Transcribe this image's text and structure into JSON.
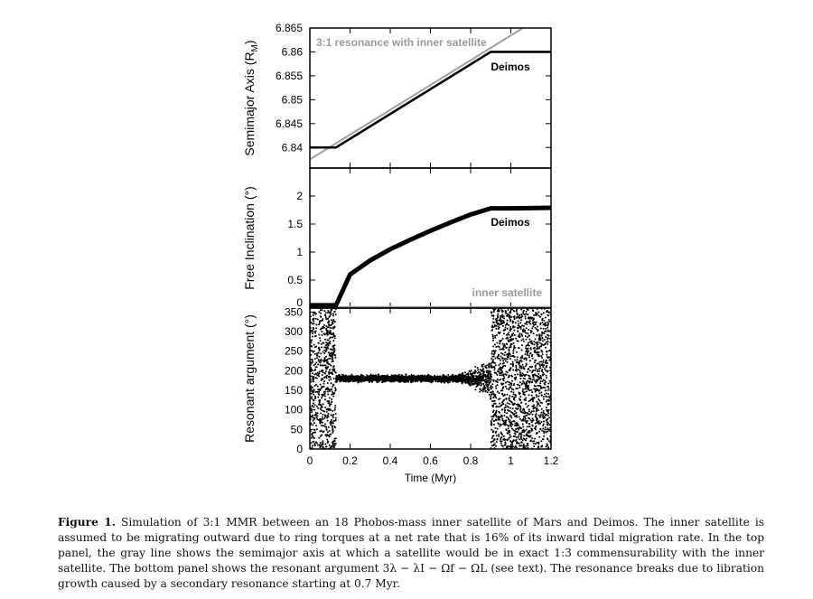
{
  "caption": {
    "label": "Figure 1.",
    "text": "Simulation of 3:1 MMR between an 18 Phobos-mass inner satellite of Mars and Deimos. The inner satellite is assumed to be migrating outward due to ring torques at a net rate that is 16% of its inward tidal migration rate. In the top panel, the gray line shows the semimajor axis at which a satellite would be in exact 1:3 commensurability with the inner satellite. The bottom panel shows the resonant argument 3λ − λI − Ωf − ΩL (see text). The resonance breaks due to libration growth caused by a secondary resonance starting at 0.7 Myr."
  },
  "chart_data": [
    {
      "type": "line",
      "ylabel": "Semimajor Axis (R_M)",
      "ylabel_main": "Semimajor Axis (R",
      "ylabel_sub": "M",
      "ylabel_end": ")",
      "xlim": [
        0,
        1.2
      ],
      "ylim": [
        6.8357,
        6.865
      ],
      "yticks": [
        "6.84",
        "6.845",
        "6.85",
        "6.855",
        "6.86",
        "6.865"
      ],
      "yticks_values": [
        6.84,
        6.845,
        6.85,
        6.855,
        6.86,
        6.865
      ],
      "series": [
        {
          "name": "Deimos",
          "color": "#000000",
          "x": [
            0,
            0.13,
            0.9,
            1.2
          ],
          "y": [
            6.84,
            6.84,
            6.86,
            6.86
          ]
        },
        {
          "name": "3:1 resonance with inner satellite",
          "color": "#a0a0a0",
          "x": [
            0,
            1.06
          ],
          "y": [
            6.8375,
            6.865
          ]
        }
      ]
    },
    {
      "type": "line",
      "ylabel": "Free Inclination (°)",
      "xlim": [
        0,
        1.2
      ],
      "ylim": [
        0,
        2.5
      ],
      "yticks": [
        "0",
        "0.5",
        "1",
        "1.5",
        "2"
      ],
      "yticks_values": [
        0,
        0.5,
        1,
        1.5,
        2
      ],
      "series": [
        {
          "name": "Deimos",
          "color": "#000000",
          "x": [
            0,
            0.13,
            0.2,
            0.3,
            0.4,
            0.5,
            0.6,
            0.7,
            0.8,
            0.9,
            1.0,
            1.2
          ],
          "y": [
            0.05,
            0.05,
            0.6,
            0.85,
            1.05,
            1.22,
            1.38,
            1.53,
            1.67,
            1.78,
            1.78,
            1.79
          ]
        },
        {
          "name": "inner satellite",
          "color": "#a0a0a0",
          "x": [
            0,
            1.2
          ],
          "y": [
            0.02,
            0.02
          ]
        }
      ]
    },
    {
      "type": "scatter",
      "ylabel": "Resonant argument (°)",
      "xlabel": "Time (Myr)",
      "xlim": [
        0,
        1.2
      ],
      "ylim": [
        0,
        360
      ],
      "xticks": [
        "0",
        "0.2",
        "0.4",
        "0.6",
        "0.8",
        "1",
        "1.2"
      ],
      "xticks_values": [
        0,
        0.2,
        0.4,
        0.6,
        0.8,
        1,
        1.2
      ],
      "yticks": [
        "0",
        "50",
        "100",
        "150",
        "200",
        "250",
        "300",
        "350"
      ],
      "yticks_values": [
        0,
        50,
        100,
        150,
        200,
        250,
        300,
        350
      ],
      "regimes": [
        {
          "x_range": [
            0,
            0.13
          ],
          "behavior": "circulating",
          "y_range": [
            0,
            360
          ]
        },
        {
          "x_range": [
            0.13,
            0.7
          ],
          "behavior": "librating",
          "center": 180,
          "amplitude": 12
        },
        {
          "x_range": [
            0.7,
            0.9
          ],
          "behavior": "libration growth",
          "center": 180,
          "amplitude_end": 70
        },
        {
          "x_range": [
            0.9,
            1.2
          ],
          "behavior": "circulating",
          "y_range": [
            0,
            360
          ]
        }
      ]
    }
  ]
}
